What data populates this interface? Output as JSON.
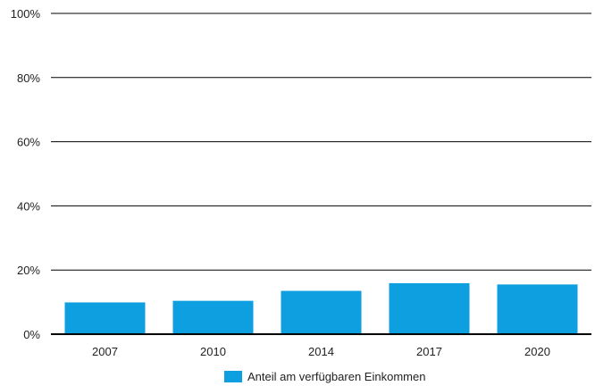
{
  "chart_data": {
    "type": "bar",
    "categories": [
      "2007",
      "2010",
      "2014",
      "2017",
      "2020"
    ],
    "series": [
      {
        "name": "Anteil am verfügbaren Einkommen",
        "values": [
          9.9,
          10.4,
          13.5,
          15.9,
          15.5
        ]
      }
    ],
    "ylim": [
      0,
      100
    ],
    "yticks": [
      "0%",
      "20%",
      "40%",
      "60%",
      "80%",
      "100%"
    ],
    "grid": true,
    "legend_position": "bottom-center",
    "colors": {
      "bar": "#0e9fe0",
      "grid": "#000000"
    }
  }
}
